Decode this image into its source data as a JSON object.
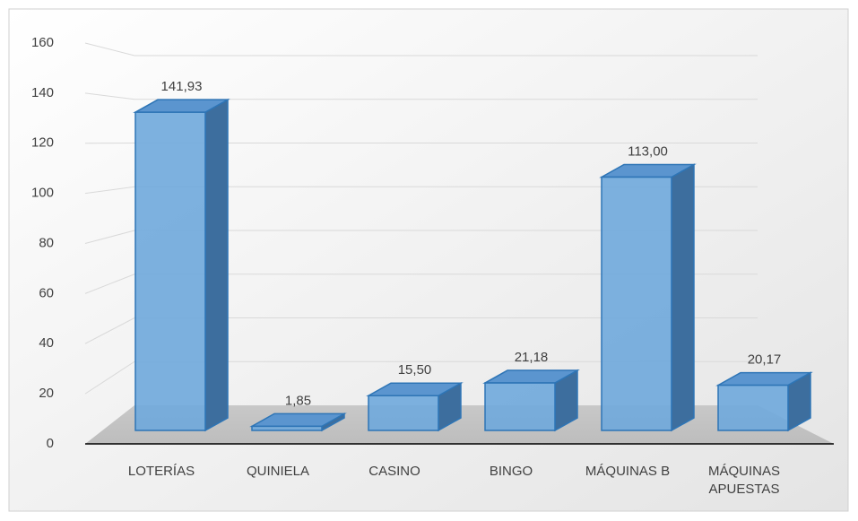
{
  "chart_data": {
    "type": "bar3d",
    "categories": [
      "LOTERÍAS",
      "QUINIELA",
      "CASINO",
      "BINGO",
      "MÁQUINAS B",
      "MÁQUINAS APUESTAS"
    ],
    "values": [
      141.93,
      1.85,
      15.5,
      21.18,
      113.0,
      20.17
    ],
    "value_labels": [
      "141,93",
      "1,85",
      "15,50",
      "21,18",
      "113,00",
      "20,17"
    ],
    "color": "#6fa8dc",
    "ylim": [
      0,
      160
    ],
    "yticks": [
      0,
      20,
      40,
      60,
      80,
      100,
      120,
      140,
      160
    ],
    "grid": true
  }
}
